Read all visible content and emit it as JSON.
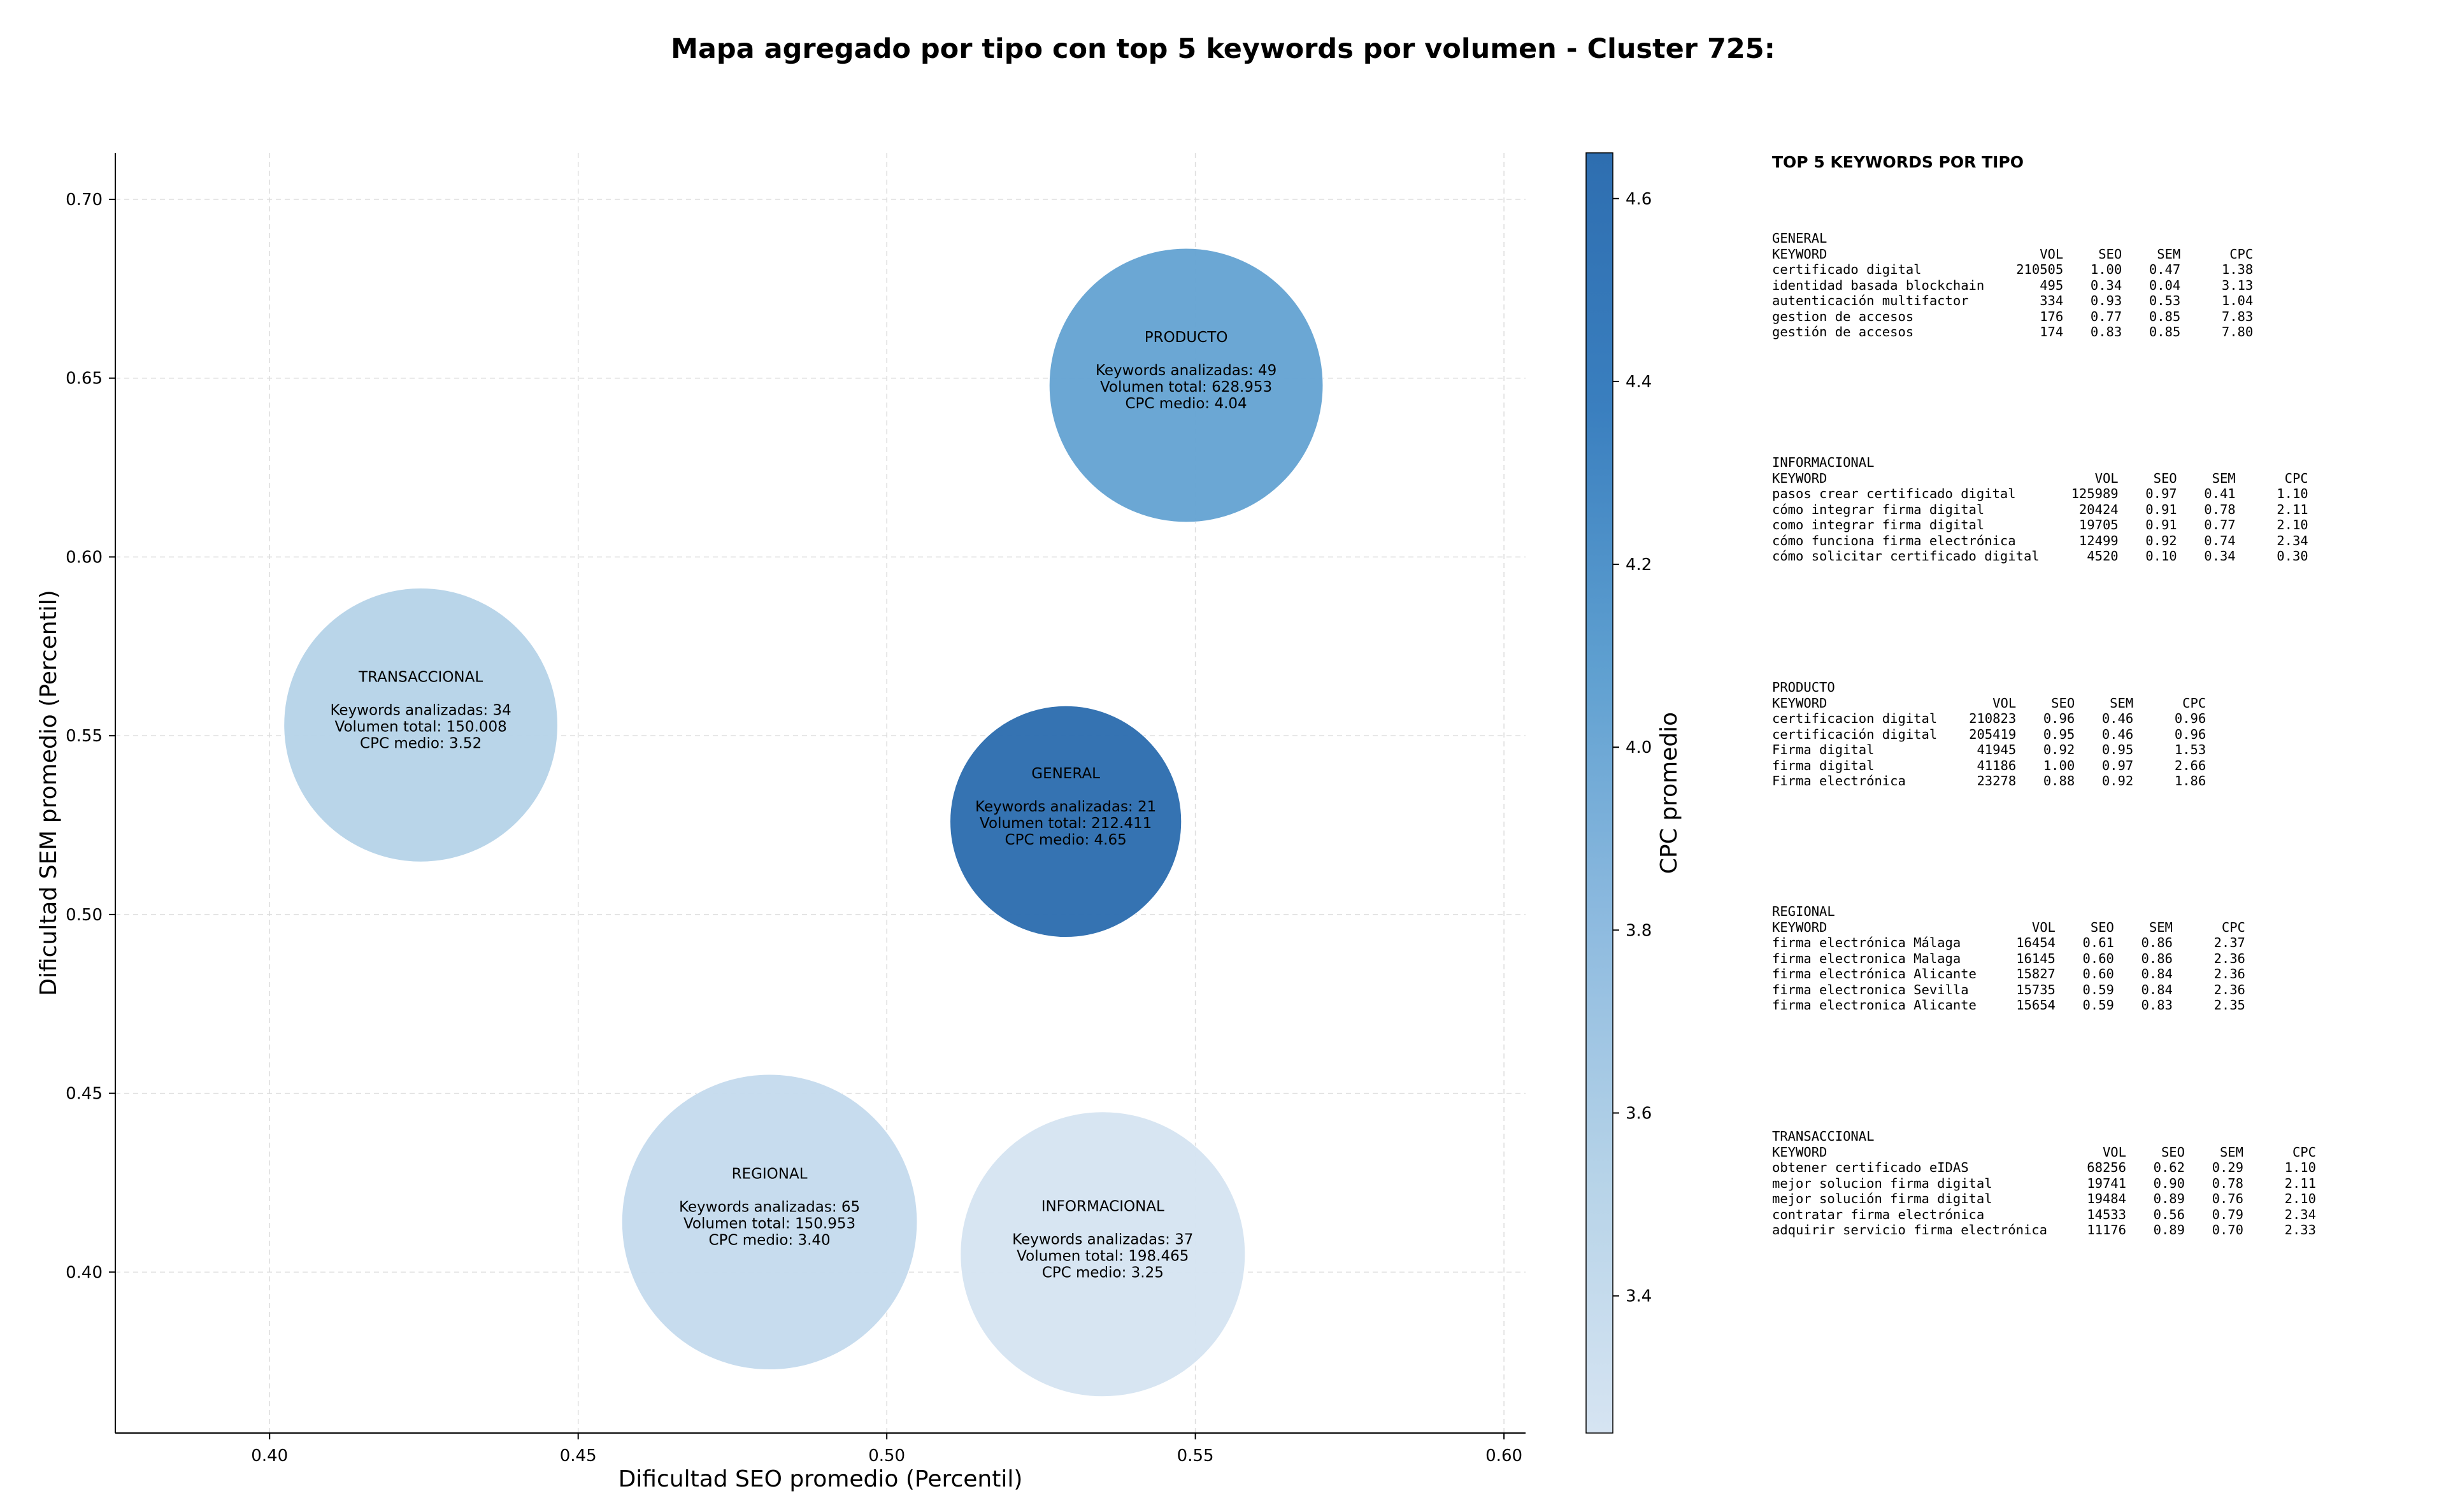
{
  "title": "Mapa agregado por tipo con top 5 keywords por volumen - Cluster 725:",
  "chart_data": {
    "type": "scatter",
    "title": "Mapa agregado por tipo con top 5 keywords por volumen - Cluster 725:",
    "xlabel": "Dificultad SEO promedio (Percentil)",
    "ylabel": "Dificultad SEM promedio (Percentil)",
    "xlim": [
      0.375,
      0.6035
    ],
    "ylim": [
      0.355,
      0.713
    ],
    "xticks": [
      "0.40",
      "0.45",
      "0.50",
      "0.55",
      "0.60"
    ],
    "yticks": [
      "0.40",
      "0.45",
      "0.50",
      "0.55",
      "0.60",
      "0.65",
      "0.70"
    ],
    "grid": true,
    "colorbar": {
      "label": "CPC promedio",
      "min": 3.25,
      "max": 4.65,
      "ticks": [
        "3.4",
        "3.6",
        "3.8",
        "4.0",
        "4.2",
        "4.4",
        "4.6"
      ],
      "colormap": [
        "#d6e4f2",
        "#b6d3e8",
        "#8dbadf",
        "#5e9fd0",
        "#3a7fbf",
        "#2e6eb0"
      ]
    },
    "points": [
      {
        "name": "PRODUCTO",
        "x": 0.5485,
        "y": 0.648,
        "keywords_label": "Keywords analizadas: 49",
        "volume_label": "Volumen total: 628.953",
        "cpc_label": "CPC medio: 4.04",
        "cpc": 4.04,
        "size": 49
      },
      {
        "name": "TRANSACCIONAL",
        "x": 0.4245,
        "y": 0.553,
        "keywords_label": "Keywords analizadas: 34",
        "volume_label": "Volumen total: 150.008",
        "cpc_label": "CPC medio: 3.52",
        "cpc": 3.52,
        "size": 49
      },
      {
        "name": "GENERAL",
        "x": 0.529,
        "y": 0.526,
        "keywords_label": "Keywords analizadas: 21",
        "volume_label": "Volumen total: 212.411",
        "cpc_label": "CPC medio: 4.65",
        "cpc": 4.65,
        "size": 35
      },
      {
        "name": "REGIONAL",
        "x": 0.481,
        "y": 0.414,
        "keywords_label": "Keywords analizadas: 65",
        "volume_label": "Volumen total: 150.953",
        "cpc_label": "CPC medio: 3.40",
        "cpc": 3.4,
        "size": 57
      },
      {
        "name": "INFORMACIONAL",
        "x": 0.535,
        "y": 0.405,
        "keywords_label": "Keywords analizadas: 37",
        "volume_label": "Volumen total: 198.465",
        "cpc_label": "CPC medio: 3.25",
        "cpc": 3.25,
        "size": 53
      }
    ]
  },
  "tables": {
    "title": "TOP 5 KEYWORDS POR TIPO",
    "groups": [
      {
        "name": "GENERAL",
        "header": [
          "KEYWORD",
          "VOL",
          "SEO",
          "SEM",
          "CPC"
        ],
        "rows": [
          [
            "certificado digital",
            "210505",
            "1.00",
            "0.47",
            "1.38"
          ],
          [
            "identidad basada blockchain",
            "495",
            "0.34",
            "0.04",
            "3.13"
          ],
          [
            "autenticación multifactor",
            "334",
            "0.93",
            "0.53",
            "1.04"
          ],
          [
            "gestion de accesos",
            "176",
            "0.77",
            "0.85",
            "7.83"
          ],
          [
            "gestión de accesos",
            "174",
            "0.83",
            "0.85",
            "7.80"
          ]
        ]
      },
      {
        "name": "INFORMACIONAL",
        "header": [
          "KEYWORD",
          "VOL",
          "SEO",
          "SEM",
          "CPC"
        ],
        "rows": [
          [
            "pasos crear certificado digital",
            "125989",
            "0.97",
            "0.41",
            "1.10"
          ],
          [
            "cómo integrar firma digital",
            "20424",
            "0.91",
            "0.78",
            "2.11"
          ],
          [
            "como integrar firma digital",
            "19705",
            "0.91",
            "0.77",
            "2.10"
          ],
          [
            "cómo funciona firma electrónica",
            "12499",
            "0.92",
            "0.74",
            "2.34"
          ],
          [
            "cómo solicitar certificado digital",
            "4520",
            "0.10",
            "0.34",
            "0.30"
          ]
        ]
      },
      {
        "name": "PRODUCTO",
        "header": [
          "KEYWORD",
          "VOL",
          "SEO",
          "SEM",
          "CPC"
        ],
        "rows": [
          [
            "certificacion digital",
            "210823",
            "0.96",
            "0.46",
            "0.96"
          ],
          [
            "certificación digital",
            "205419",
            "0.95",
            "0.46",
            "0.96"
          ],
          [
            "Firma digital",
            "41945",
            "0.92",
            "0.95",
            "1.53"
          ],
          [
            "firma digital",
            "41186",
            "1.00",
            "0.97",
            "2.66"
          ],
          [
            "Firma electrónica",
            "23278",
            "0.88",
            "0.92",
            "1.86"
          ]
        ]
      },
      {
        "name": "REGIONAL",
        "header": [
          "KEYWORD",
          "VOL",
          "SEO",
          "SEM",
          "CPC"
        ],
        "rows": [
          [
            "firma electrónica Málaga",
            "16454",
            "0.61",
            "0.86",
            "2.37"
          ],
          [
            "firma electronica Malaga",
            "16145",
            "0.60",
            "0.86",
            "2.36"
          ],
          [
            "firma electrónica Alicante",
            "15827",
            "0.60",
            "0.84",
            "2.36"
          ],
          [
            "firma electronica Sevilla",
            "15735",
            "0.59",
            "0.84",
            "2.36"
          ],
          [
            "firma electronica Alicante",
            "15654",
            "0.59",
            "0.83",
            "2.35"
          ]
        ]
      },
      {
        "name": "TRANSACCIONAL",
        "header": [
          "KEYWORD",
          "VOL",
          "SEO",
          "SEM",
          "CPC"
        ],
        "rows": [
          [
            "obtener certificado eIDAS",
            "68256",
            "0.62",
            "0.29",
            "1.10"
          ],
          [
            "mejor solucion firma digital",
            "19741",
            "0.90",
            "0.78",
            "2.11"
          ],
          [
            "mejor solución firma digital",
            "19484",
            "0.89",
            "0.76",
            "2.10"
          ],
          [
            "contratar firma electrónica",
            "14533",
            "0.56",
            "0.79",
            "2.34"
          ],
          [
            "adquirir servicio firma electrónica",
            "11176",
            "0.89",
            "0.70",
            "2.33"
          ]
        ]
      }
    ]
  }
}
